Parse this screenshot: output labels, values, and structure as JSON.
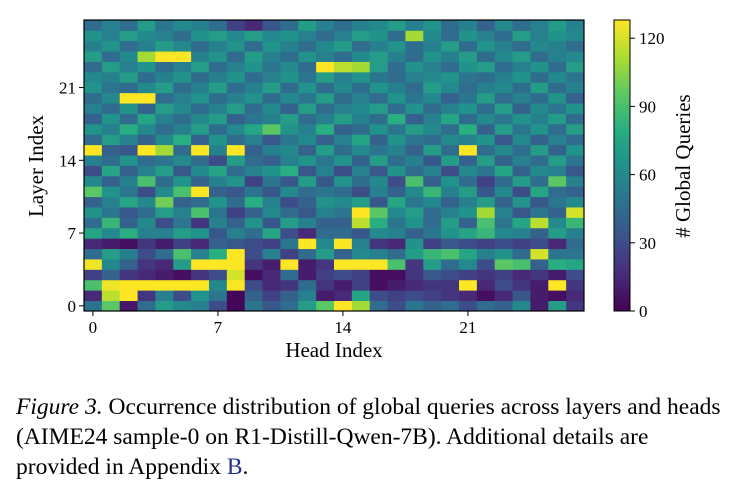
{
  "chart_data": {
    "type": "heatmap",
    "xlabel": "Head Index",
    "ylabel": "Layer Index",
    "x_ticks": [
      "0",
      "7",
      "14",
      "21"
    ],
    "y_ticks": [
      "0",
      "7",
      "14",
      "21"
    ],
    "n_heads": 28,
    "n_layers": 28,
    "colorbar": {
      "label": "# Global Queries",
      "ticks": [
        "0",
        "30",
        "60",
        "90",
        "120"
      ],
      "range": [
        0,
        128
      ],
      "colormap": "viridis"
    },
    "values": [
      [
        48,
        95,
        8,
        45,
        70,
        60,
        55,
        30,
        2,
        50,
        35,
        45,
        70,
        95,
        128,
        110,
        45,
        30,
        50,
        40,
        45,
        30,
        45,
        40,
        60,
        10,
        70,
        20
      ],
      [
        15,
        115,
        128,
        20,
        55,
        30,
        65,
        50,
        2,
        40,
        25,
        40,
        55,
        10,
        15,
        75,
        30,
        25,
        30,
        25,
        20,
        15,
        5,
        15,
        35,
        10,
        5,
        15
      ],
      [
        90,
        125,
        128,
        128,
        128,
        128,
        128,
        60,
        128,
        30,
        15,
        20,
        45,
        20,
        10,
        25,
        5,
        10,
        15,
        20,
        20,
        128,
        15,
        30,
        20,
        10,
        128,
        20
      ],
      [
        25,
        40,
        20,
        15,
        10,
        5,
        20,
        30,
        120,
        5,
        15,
        45,
        10,
        25,
        30,
        25,
        5,
        5,
        20,
        35,
        30,
        25,
        20,
        25,
        15,
        20,
        10,
        30
      ],
      [
        125,
        60,
        40,
        20,
        15,
        70,
        128,
        128,
        128,
        20,
        10,
        128,
        10,
        20,
        128,
        128,
        128,
        90,
        20,
        70,
        45,
        60,
        30,
        95,
        90,
        40,
        80,
        75
      ],
      [
        45,
        70,
        55,
        30,
        45,
        90,
        55,
        80,
        128,
        30,
        55,
        25,
        45,
        70,
        40,
        60,
        55,
        45,
        70,
        85,
        90,
        75,
        55,
        65,
        45,
        120,
        50,
        50
      ],
      [
        15,
        10,
        5,
        20,
        10,
        25,
        15,
        40,
        35,
        30,
        25,
        50,
        128,
        60,
        128,
        55,
        20,
        15,
        65,
        25,
        35,
        30,
        25,
        30,
        25,
        30,
        15,
        45
      ],
      [
        75,
        60,
        80,
        55,
        55,
        70,
        65,
        35,
        55,
        45,
        75,
        30,
        15,
        45,
        45,
        35,
        60,
        55,
        40,
        50,
        65,
        75,
        85,
        60,
        55,
        40,
        70,
        55
      ],
      [
        45,
        85,
        40,
        60,
        30,
        50,
        20,
        55,
        40,
        65,
        35,
        70,
        55,
        40,
        40,
        115,
        80,
        50,
        65,
        45,
        70,
        40,
        90,
        50,
        75,
        115,
        60,
        85
      ],
      [
        65,
        50,
        35,
        45,
        70,
        55,
        90,
        50,
        25,
        40,
        60,
        45,
        35,
        55,
        50,
        128,
        95,
        60,
        70,
        45,
        55,
        65,
        110,
        55,
        35,
        50,
        40,
        120
      ],
      [
        40,
        55,
        75,
        60,
        100,
        40,
        45,
        65,
        45,
        80,
        55,
        30,
        40,
        65,
        60,
        70,
        35,
        75,
        50,
        60,
        40,
        55,
        70,
        40,
        65,
        35,
        50,
        60
      ],
      [
        95,
        65,
        50,
        30,
        60,
        90,
        128,
        40,
        35,
        50,
        35,
        60,
        45,
        50,
        45,
        30,
        55,
        40,
        60,
        85,
        55,
        70,
        35,
        60,
        30,
        75,
        45,
        40
      ],
      [
        60,
        40,
        55,
        90,
        45,
        65,
        40,
        55,
        65,
        25,
        50,
        35,
        70,
        35,
        65,
        45,
        60,
        30,
        90,
        40,
        65,
        45,
        25,
        45,
        70,
        45,
        95,
        55
      ],
      [
        30,
        75,
        40,
        55,
        70,
        35,
        60,
        75,
        45,
        55,
        65,
        80,
        35,
        55,
        30,
        55,
        35,
        65,
        45,
        55,
        30,
        60,
        50,
        75,
        40,
        60,
        55,
        35
      ],
      [
        55,
        45,
        65,
        45,
        50,
        60,
        45,
        30,
        70,
        45,
        40,
        55,
        65,
        50,
        65,
        40,
        70,
        45,
        55,
        35,
        70,
        40,
        70,
        40,
        55,
        45,
        70,
        50
      ],
      [
        128,
        40,
        35,
        128,
        110,
        45,
        128,
        55,
        128,
        40,
        55,
        60,
        40,
        70,
        45,
        60,
        50,
        55,
        40,
        70,
        45,
        128,
        45,
        60,
        45,
        70,
        40,
        65
      ],
      [
        45,
        70,
        55,
        40,
        60,
        80,
        40,
        65,
        45,
        55,
        35,
        50,
        60,
        40,
        55,
        75,
        40,
        65,
        50,
        45,
        60,
        55,
        65,
        35,
        60,
        40,
        55,
        45
      ],
      [
        65,
        55,
        80,
        60,
        45,
        55,
        70,
        45,
        60,
        75,
        95,
        65,
        55,
        80,
        40,
        45,
        65,
        50,
        70,
        60,
        45,
        80,
        40,
        70,
        50,
        65,
        45,
        70
      ],
      [
        40,
        65,
        45,
        75,
        55,
        45,
        60,
        70,
        40,
        50,
        55,
        70,
        45,
        55,
        70,
        55,
        45,
        80,
        40,
        55,
        75,
        45,
        60,
        50,
        65,
        55,
        70,
        45
      ],
      [
        55,
        45,
        65,
        40,
        70,
        60,
        45,
        55,
        70,
        45,
        60,
        40,
        70,
        45,
        55,
        60,
        70,
        45,
        65,
        45,
        55,
        65,
        45,
        70,
        40,
        60,
        50,
        65
      ],
      [
        45,
        60,
        128,
        128,
        45,
        55,
        65,
        45,
        55,
        65,
        45,
        60,
        50,
        70,
        45,
        55,
        45,
        65,
        50,
        60,
        40,
        50,
        70,
        45,
        55,
        45,
        65,
        40
      ],
      [
        65,
        50,
        45,
        60,
        70,
        45,
        55,
        70,
        45,
        55,
        70,
        45,
        65,
        45,
        60,
        45,
        65,
        55,
        45,
        70,
        60,
        45,
        55,
        60,
        45,
        70,
        45,
        55
      ],
      [
        60,
        55,
        70,
        45,
        55,
        65,
        45,
        55,
        65,
        45,
        55,
        65,
        50,
        70,
        55,
        65,
        50,
        45,
        55,
        60,
        65,
        50,
        45,
        55,
        65,
        45,
        60,
        50
      ],
      [
        45,
        70,
        55,
        65,
        45,
        55,
        70,
        45,
        55,
        65,
        50,
        60,
        45,
        128,
        115,
        110,
        70,
        45,
        65,
        55,
        45,
        65,
        70,
        45,
        55,
        65,
        45,
        70
      ],
      [
        70,
        45,
        60,
        110,
        128,
        128,
        55,
        65,
        45,
        70,
        55,
        45,
        65,
        55,
        45,
        60,
        70,
        55,
        45,
        65,
        55,
        70,
        45,
        60,
        70,
        45,
        55,
        60
      ],
      [
        55,
        65,
        45,
        55,
        70,
        60,
        45,
        55,
        65,
        45,
        65,
        55,
        45,
        60,
        70,
        45,
        55,
        65,
        45,
        55,
        70,
        45,
        65,
        55,
        45,
        60,
        55,
        45
      ],
      [
        65,
        55,
        70,
        60,
        55,
        45,
        65,
        70,
        60,
        70,
        60,
        65,
        55,
        45,
        55,
        70,
        65,
        45,
        110,
        60,
        45,
        65,
        55,
        45,
        70,
        55,
        65,
        60
      ],
      [
        45,
        55,
        45,
        70,
        50,
        60,
        55,
        45,
        25,
        15,
        35,
        45,
        70,
        55,
        45,
        55,
        60,
        70,
        55,
        65,
        45,
        55,
        40,
        60,
        45,
        55,
        70,
        55
      ]
    ]
  },
  "caption": {
    "label": "Figure 3.",
    "text": " Occurrence distribution of global queries across layers and heads (AIME24 sample-0 on R1-Distill-Qwen-7B). Additional details are provided in Appendix ",
    "ref": "B",
    "end": "."
  }
}
